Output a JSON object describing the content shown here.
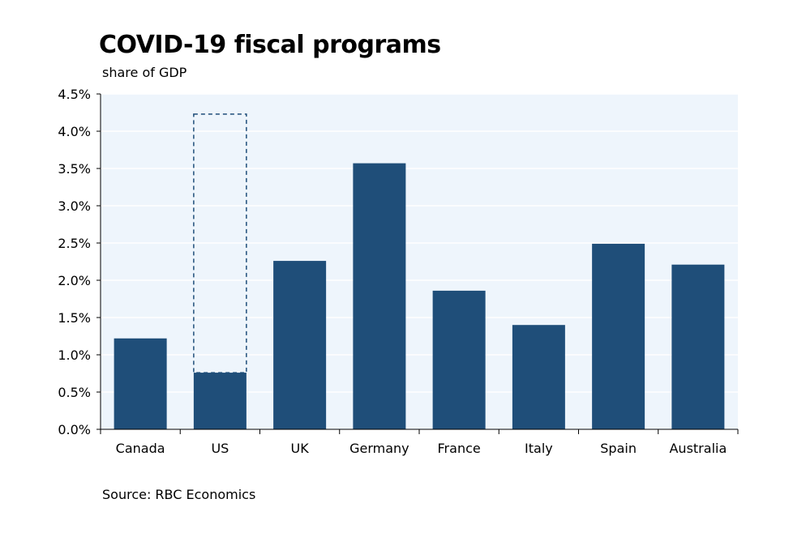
{
  "chart_data": {
    "type": "bar",
    "title": "COVID-19 fiscal programs",
    "subtitle": "share of GDP",
    "source": "Source: RBC Economics",
    "xlabel": "",
    "ylabel": "share of GDP",
    "categories": [
      "Canada",
      "US",
      "UK",
      "Germany",
      "France",
      "Italy",
      "Spain",
      "Australia"
    ],
    "values": [
      1.22,
      0.76,
      2.26,
      3.57,
      1.86,
      1.4,
      2.49,
      2.21
    ],
    "dashed_outline": {
      "category": "US",
      "from": 0.76,
      "to": 4.23
    },
    "ylim": [
      0,
      4.5
    ],
    "yticks": [
      0.0,
      0.5,
      1.0,
      1.5,
      2.0,
      2.5,
      3.0,
      3.5,
      4.0,
      4.5
    ],
    "ytick_labels": [
      "0.0%",
      "0.5%",
      "1.0%",
      "1.5%",
      "2.0%",
      "2.5%",
      "3.0%",
      "3.5%",
      "4.0%",
      "4.5%"
    ],
    "grid": true,
    "colors": {
      "bar": "#1f4e79",
      "plot_background": "#eef5fc",
      "grid": "#ffffff",
      "axis": "#000000",
      "dashed": "#1f4e79"
    }
  }
}
